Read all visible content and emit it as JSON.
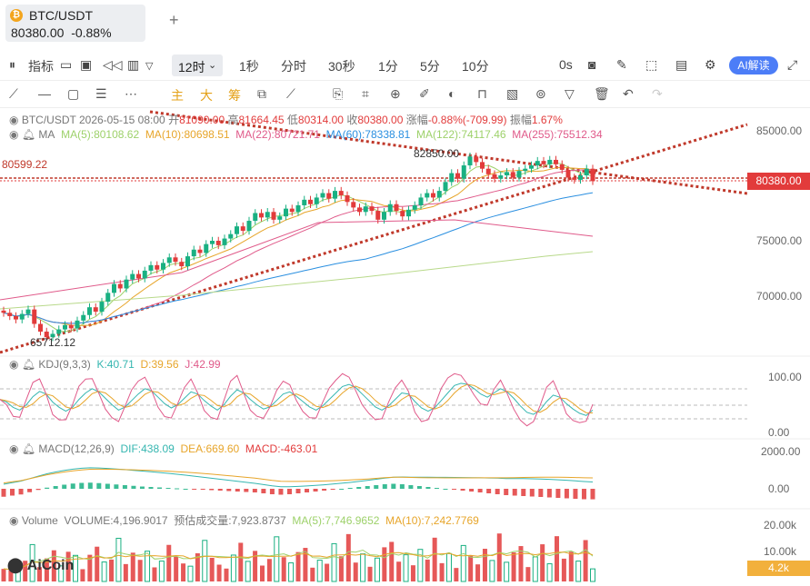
{
  "tab": {
    "coin_icon": "bitcoin-icon",
    "symbol": "BTC/USDT",
    "price": "80380.00",
    "change": "-0.88%",
    "add": "+"
  },
  "toolbar1": {
    "indicators": "指标",
    "interval": "12时",
    "intervals": [
      "1秒",
      "分时",
      "30秒",
      "1分",
      "5分",
      "10分"
    ],
    "seconds_value": "0s",
    "ai_label": "AI解读"
  },
  "toolbar2": {
    "main": "主",
    "big": "大",
    "chip": "筹"
  },
  "info": {
    "symbol": "BTC/USDT",
    "date": "2026-05-15 08:00",
    "open_label": "开",
    "open": "81090.00",
    "high_label": "高",
    "high": "81664.45",
    "low_label": "低",
    "low": "80314.00",
    "close_label": "收",
    "close": "80380.00",
    "change_label": "涨幅",
    "change": "-0.88%(-709.99)",
    "amp_label": "振幅",
    "amp": "1.67%"
  },
  "ma": {
    "label": "MA",
    "ma5": "MA(5):80108.62",
    "ma10": "MA(10):80698.51",
    "ma22": "MA(22):80721.71",
    "ma60": "MA(60):78338.81",
    "ma122": "MA(122):74117.46",
    "ma255": "MA(255):75512.34"
  },
  "price_axis": [
    "85000.00",
    "75000.00",
    "70000.00"
  ],
  "last_price": "80380.00",
  "marks": {
    "hline_value": "80599.22",
    "high_mark": "82850.00",
    "low_mark": "65712.12"
  },
  "kdj": {
    "label": "KDJ(9,3,3)",
    "k": "K:40.71",
    "d": "D:39.56",
    "j": "J:42.99",
    "axis": [
      "100.00",
      "0.00"
    ]
  },
  "macd": {
    "label": "MACD(12,26,9)",
    "dif": "DIF:438.09",
    "dea": "DEA:669.60",
    "macd": "MACD:-463.01",
    "axis": [
      "2000.00",
      "0.00"
    ]
  },
  "volume": {
    "label": "Volume",
    "volume": "VOLUME:4,196.9017",
    "estimate": "预估成交量:7,923.8737",
    "ma5": "MA(5):7,746.9652",
    "ma10": "MA(10):7,242.7769",
    "axis": [
      "20.00k",
      "10.00k"
    ],
    "tag": "4.2k"
  },
  "logo": "AiCoin",
  "colors": {
    "up": "#19b082",
    "down": "#e23b3b",
    "accent": "#4c7df7",
    "trendline": "#c0392b"
  },
  "chart_data": {
    "type": "candlestick",
    "price_axis_ticks": [
      70000,
      75000,
      85000
    ],
    "closes": [
      68500,
      68200,
      67900,
      68400,
      68800,
      67500,
      66800,
      66300,
      66600,
      67000,
      67400,
      67100,
      67800,
      68300,
      69000,
      68600,
      69500,
      70300,
      71100,
      70700,
      71500,
      72000,
      71600,
      72300,
      72800,
      72400,
      73000,
      73500,
      73100,
      72700,
      73600,
      74200,
      73900,
      74700,
      75000,
      74600,
      75200,
      75600,
      76300,
      75900,
      76800,
      77500,
      77100,
      77600,
      76900,
      77200,
      77900,
      77600,
      78200,
      78700,
      78300,
      78900,
      79300,
      78800,
      79500,
      79100,
      78500,
      78000,
      77600,
      78100,
      77700,
      76900,
      77600,
      78300,
      77700,
      77200,
      77800,
      78200,
      78900,
      79300,
      78900,
      79500,
      80300,
      81100,
      80600,
      81800,
      82600,
      82100,
      81500,
      81000,
      80600,
      80900,
      81200,
      80700,
      81300,
      81500,
      81800,
      82200,
      81900,
      82300,
      81900,
      81400,
      80700,
      80500,
      80900,
      81500,
      80380
    ],
    "kdj_k": [
      60,
      55,
      45,
      40,
      50,
      65,
      75,
      70,
      55,
      45,
      38,
      45,
      60,
      72,
      80,
      74,
      62,
      50,
      40,
      46,
      58,
      70,
      80,
      76,
      64,
      52,
      44,
      50,
      62,
      74,
      70,
      58,
      48,
      40,
      50,
      66,
      78,
      72,
      60,
      50,
      42,
      46,
      58,
      70,
      74,
      66,
      56,
      46,
      40,
      48,
      60,
      72,
      84,
      88,
      82,
      70,
      58,
      46,
      40,
      48,
      60,
      72,
      70,
      56,
      44,
      38,
      44,
      58,
      72,
      86,
      90,
      88,
      80,
      70,
      64,
      72,
      80,
      74,
      62,
      48,
      36,
      32,
      40,
      56,
      68,
      64,
      52,
      42,
      34,
      30,
      40
    ],
    "macd_hist": [
      -350,
      -300,
      -250,
      -150,
      -50,
      50,
      120,
      180,
      230,
      260,
      270,
      250,
      220,
      190,
      160,
      130,
      100,
      80,
      60,
      40,
      20,
      0,
      -20,
      -40,
      -60,
      -80,
      -100,
      -120,
      -140,
      -160,
      -200,
      -240,
      -260,
      -240,
      -200,
      -160,
      -120,
      -80,
      -40,
      0,
      40,
      80,
      120,
      160,
      200,
      220,
      200,
      160,
      120,
      80,
      40,
      0,
      -40,
      -80,
      -120,
      -160,
      -200,
      -240,
      -280,
      -300,
      -320,
      -340,
      -360,
      -380,
      -400,
      -420,
      -440,
      -460,
      -463
    ],
    "volume": [
      4200,
      3800,
      5600,
      6900,
      12300,
      4800,
      7700,
      10400,
      5200,
      9900,
      8700,
      4100,
      8900,
      11600,
      6500,
      7300,
      14400,
      5800,
      9600,
      7200,
      10100,
      4700,
      6800,
      12200,
      8300,
      6000,
      5100,
      9400,
      13700,
      7900,
      5600,
      4300,
      8800,
      12900,
      6700,
      10200,
      5300,
      7500,
      14900,
      8100,
      6200,
      9800,
      11200,
      4600,
      7100,
      5900,
      12600,
      8400,
      15800,
      6300,
      9200,
      4900,
      7800,
      11400,
      13200,
      6600,
      8900,
      5400,
      10700,
      7300,
      14600,
      6100,
      9300,
      4500,
      12000,
      8600,
      5700,
      10900,
      7000,
      16000,
      6400,
      9700,
      11800,
      4800,
      8200,
      12400,
      5900,
      15100,
      7600,
      9900,
      6800,
      13800,
      4200
    ],
    "ma_lines": [
      "MA(5)",
      "MA(10)",
      "MA(22)",
      "MA(60)",
      "MA(122)",
      "MA(255)"
    ]
  }
}
